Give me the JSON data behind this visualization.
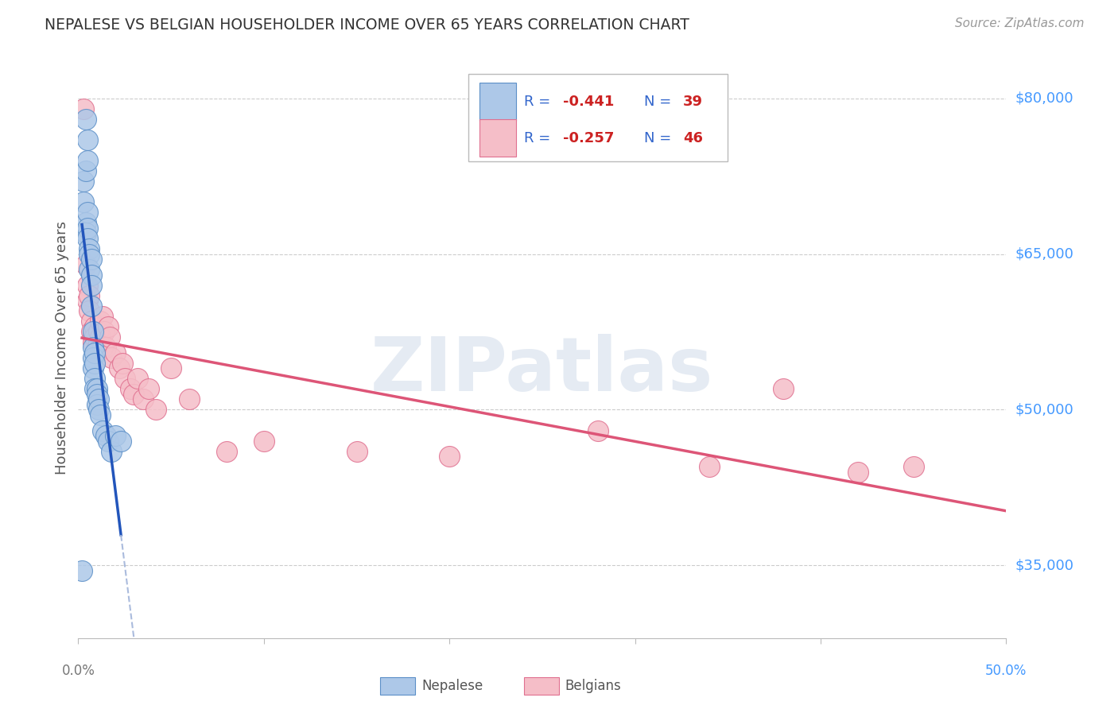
{
  "title": "NEPALESE VS BELGIAN HOUSEHOLDER INCOME OVER 65 YEARS CORRELATION CHART",
  "source": "Source: ZipAtlas.com",
  "ylabel": "Householder Income Over 65 years",
  "xlim": [
    0.0,
    0.5
  ],
  "ylim": [
    28000,
    84000
  ],
  "yticks": [
    35000,
    50000,
    65000,
    80000
  ],
  "ytick_labels": [
    "$35,000",
    "$50,000",
    "$65,000",
    "$80,000"
  ],
  "watermark": "ZIPatlas",
  "nepalese_color": "#adc8e8",
  "nepalese_edge": "#5b8fc7",
  "belgian_color": "#f5bec8",
  "belgian_edge": "#e07090",
  "blue_line_color": "#2255bb",
  "pink_line_color": "#dd5577",
  "dashed_line_color": "#aabbdd",
  "background_color": "#ffffff",
  "grid_color": "#cccccc",
  "right_label_color": "#4499ff",
  "nepalese_x": [
    0.002,
    0.003,
    0.003,
    0.004,
    0.004,
    0.004,
    0.005,
    0.005,
    0.005,
    0.005,
    0.005,
    0.006,
    0.006,
    0.006,
    0.007,
    0.007,
    0.007,
    0.007,
    0.008,
    0.008,
    0.008,
    0.008,
    0.009,
    0.009,
    0.009,
    0.009,
    0.01,
    0.01,
    0.01,
    0.011,
    0.011,
    0.012,
    0.013,
    0.015,
    0.016,
    0.018,
    0.02,
    0.023,
    0.004
  ],
  "nepalese_y": [
    34500,
    72000,
    70000,
    73000,
    68000,
    67000,
    76000,
    74000,
    69000,
    67500,
    66500,
    65500,
    65000,
    63500,
    64500,
    63000,
    62000,
    60000,
    57500,
    56000,
    55000,
    54000,
    55500,
    54500,
    53000,
    52000,
    52000,
    51500,
    50500,
    51000,
    50000,
    49500,
    48000,
    47500,
    47000,
    46000,
    47500,
    47000,
    78000
  ],
  "belgian_x": [
    0.003,
    0.004,
    0.005,
    0.005,
    0.006,
    0.006,
    0.007,
    0.007,
    0.008,
    0.008,
    0.009,
    0.009,
    0.01,
    0.01,
    0.011,
    0.011,
    0.012,
    0.012,
    0.013,
    0.013,
    0.014,
    0.015,
    0.016,
    0.017,
    0.018,
    0.02,
    0.022,
    0.024,
    0.025,
    0.028,
    0.03,
    0.032,
    0.035,
    0.038,
    0.042,
    0.05,
    0.06,
    0.08,
    0.1,
    0.15,
    0.2,
    0.28,
    0.34,
    0.38,
    0.42,
    0.45
  ],
  "belgian_y": [
    79000,
    64000,
    62000,
    60500,
    61000,
    59500,
    58500,
    57500,
    57000,
    56500,
    58000,
    57000,
    56000,
    55500,
    57500,
    56500,
    58500,
    57000,
    59000,
    56000,
    57500,
    56000,
    58000,
    57000,
    55000,
    55500,
    54000,
    54500,
    53000,
    52000,
    51500,
    53000,
    51000,
    52000,
    50000,
    54000,
    51000,
    46000,
    47000,
    46000,
    45500,
    48000,
    44500,
    52000,
    44000,
    44500
  ]
}
